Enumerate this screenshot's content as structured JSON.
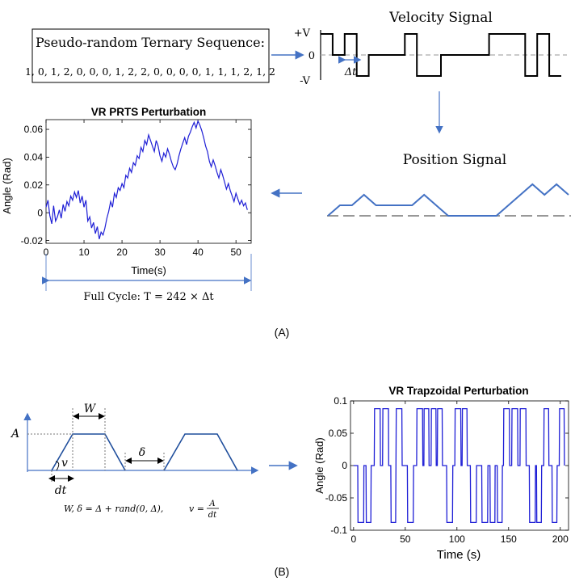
{
  "panel_a": {
    "prts_box": {
      "title": "Pseudo-random Ternary Sequence:",
      "sequence": "1, 0, 1, 2, 0, 0, 0, 1, 2, 2, 0, 0, 0, 0, 1, 1, 1, 2, 1, 2"
    },
    "velocity": {
      "title": "Velocity Signal",
      "plus_v": "+V",
      "zero": "0",
      "minus_v": "-V",
      "delta_t": "Δt",
      "levels": [
        1,
        0,
        1,
        -1,
        0,
        0,
        0,
        1,
        -1,
        -1,
        0,
        0,
        0,
        0,
        1,
        1,
        1,
        -1,
        1,
        -1
      ]
    },
    "position": {
      "title": "Position Signal"
    },
    "full_cycle": "Full Cycle:  T = 242 × Δt",
    "label": "(A)"
  },
  "panel_b": {
    "trap": {
      "A": "A",
      "W": "W",
      "delta": "δ",
      "v": "v",
      "dt": "dt",
      "formula_left": "W, δ = Δ + rand(0, Δ),",
      "formula_v": "v =",
      "formula_num": "A",
      "formula_den": "dt"
    },
    "label": "(B)"
  },
  "chart_data": [
    {
      "type": "line",
      "title": "VR PRTS Perturbation",
      "xlabel": "Time(s)",
      "ylabel": "Angle (Rad)",
      "xlim": [
        0,
        54
      ],
      "ylim": [
        -0.022,
        0.067
      ],
      "xticks": [
        0,
        10,
        20,
        30,
        40,
        50
      ],
      "yticks": [
        -0.02,
        0,
        0.02,
        0.04,
        0.06
      ],
      "ytick_labels": [
        "-0.02",
        "0",
        "0.02",
        "0.04",
        "0.06"
      ],
      "grid": false,
      "color": "#1f1fd6",
      "series": [
        {
          "x": [
            0,
            0.5,
            1,
            1.5,
            2,
            2.5,
            3,
            3.5,
            4,
            4.5,
            5,
            5.5,
            6,
            6.5,
            7,
            7.5,
            8,
            8.5,
            9,
            9.5,
            10,
            10.5,
            11,
            11.5,
            12,
            12.5,
            13,
            13.5,
            14,
            14.5,
            15,
            15.5,
            16,
            16.5,
            17,
            17.5,
            18,
            18.5,
            19,
            19.5,
            20,
            20.5,
            21,
            21.5,
            22,
            22.5,
            23,
            23.5,
            24,
            24.5,
            25,
            25.5,
            26,
            26.5,
            27,
            27.5,
            28,
            28.5,
            29,
            29.5,
            30,
            30.5,
            31,
            31.5,
            32,
            32.5,
            33,
            33.5,
            34,
            34.5,
            35,
            35.5,
            36,
            36.5,
            37,
            37.5,
            38,
            38.5,
            39,
            39.5,
            40,
            40.5,
            41,
            41.5,
            42,
            42.5,
            43,
            43.5,
            44,
            44.5,
            45,
            45.5,
            46,
            46.5,
            47,
            47.5,
            48,
            48.5,
            49,
            49.5,
            50,
            50.5,
            51,
            51.5,
            52,
            52.5,
            53
          ],
          "y": [
            0.004,
            0.009,
            -0.002,
            -0.008,
            0.005,
            -0.006,
            -0.003,
            0.002,
            -0.004,
            0.006,
            0.001,
            0.008,
            0.005,
            0.012,
            0.009,
            0.015,
            0.011,
            0.016,
            0.007,
            0.012,
            0.004,
            0.009,
            -0.006,
            -0.003,
            -0.011,
            -0.007,
            -0.015,
            -0.01,
            -0.019,
            -0.014,
            -0.016,
            -0.011,
            -0.004,
            0.001,
            0.008,
            0.004,
            0.014,
            0.011,
            0.018,
            0.016,
            0.021,
            0.018,
            0.027,
            0.025,
            0.032,
            0.029,
            0.036,
            0.034,
            0.041,
            0.039,
            0.047,
            0.044,
            0.052,
            0.049,
            0.056,
            0.052,
            0.048,
            0.044,
            0.052,
            0.048,
            0.041,
            0.037,
            0.043,
            0.04,
            0.046,
            0.042,
            0.037,
            0.033,
            0.031,
            0.035,
            0.041,
            0.046,
            0.05,
            0.054,
            0.049,
            0.055,
            0.058,
            0.062,
            0.065,
            0.061,
            0.066,
            0.063,
            0.059,
            0.054,
            0.048,
            0.044,
            0.037,
            0.033,
            0.038,
            0.034,
            0.029,
            0.025,
            0.031,
            0.027,
            0.022,
            0.017,
            0.021,
            0.016,
            0.012,
            0.008,
            0.014,
            0.01,
            0.006,
            0.009,
            0.005,
            0.007,
            0.002
          ]
        }
      ]
    },
    {
      "type": "line",
      "title": "VR Trapzoidal Perturbation",
      "xlabel": "Time (s)",
      "ylabel": "Angle (Rad)",
      "xlim": [
        -3,
        208
      ],
      "ylim": [
        -0.1,
        0.1
      ],
      "xticks": [
        0,
        50,
        100,
        150,
        200
      ],
      "yticks": [
        -0.1,
        -0.05,
        0,
        0.05,
        0.1
      ],
      "ytick_labels": [
        "-0.1",
        "-0.05",
        "0",
        "0.05",
        "0.1"
      ],
      "grid": false,
      "color": "#1f1fd6",
      "series": [
        {
          "pulses": [
            {
              "start": 4,
              "width": 6,
              "amp": -0.088
            },
            {
              "start": 12,
              "width": 5,
              "amp": -0.088
            },
            {
              "start": 20,
              "width": 6,
              "amp": 0.088
            },
            {
              "start": 28,
              "width": 6,
              "amp": 0.088
            },
            {
              "start": 36,
              "width": 5,
              "amp": -0.088
            },
            {
              "start": 41,
              "width": 6,
              "amp": 0.088
            },
            {
              "start": 52,
              "width": 6,
              "amp": -0.088
            },
            {
              "start": 61,
              "width": 6,
              "amp": 0.088
            },
            {
              "start": 68,
              "width": 5,
              "amp": 0.088
            },
            {
              "start": 75,
              "width": 5,
              "amp": 0.088
            },
            {
              "start": 81,
              "width": 5,
              "amp": 0.088
            },
            {
              "start": 90,
              "width": 6,
              "amp": -0.088
            },
            {
              "start": 98,
              "width": 6,
              "amp": 0.088
            },
            {
              "start": 105,
              "width": 5,
              "amp": 0.088
            },
            {
              "start": 113,
              "width": 6,
              "amp": -0.088
            },
            {
              "start": 124,
              "width": 6,
              "amp": -0.088
            },
            {
              "start": 132,
              "width": 5,
              "amp": -0.088
            },
            {
              "start": 139,
              "width": 5,
              "amp": -0.088
            },
            {
              "start": 145,
              "width": 6,
              "amp": 0.088
            },
            {
              "start": 153,
              "width": 6,
              "amp": 0.088
            },
            {
              "start": 161,
              "width": 6,
              "amp": 0.088
            },
            {
              "start": 170,
              "width": 6,
              "amp": -0.088
            },
            {
              "start": 177,
              "width": 5,
              "amp": -0.088
            },
            {
              "start": 184,
              "width": 5,
              "amp": 0.088
            },
            {
              "start": 192,
              "width": 5,
              "amp": -0.088
            },
            {
              "start": 199,
              "width": 5,
              "amp": 0.088
            }
          ]
        }
      ]
    }
  ]
}
